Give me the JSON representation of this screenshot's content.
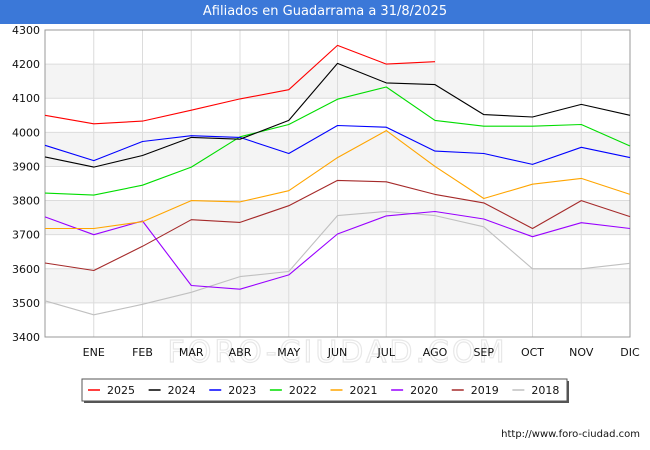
{
  "chart_data": {
    "type": "line",
    "title": "Afiliados en Guadarrama a 31/8/2025",
    "categories": [
      "",
      "ENE",
      "FEB",
      "MAR",
      "ABR",
      "MAY",
      "JUN",
      "JUL",
      "AGO",
      "SEP",
      "OCT",
      "NOV",
      "DIC"
    ],
    "ylim": [
      3400,
      4300
    ],
    "yticks": [
      3400,
      3500,
      3600,
      3700,
      3800,
      3900,
      4000,
      4100,
      4200,
      4300
    ],
    "watermark": "FORO-CIUDAD.COM",
    "source": "http://www.foro-ciudad.com",
    "series": [
      {
        "name": "2025",
        "color": "#ff0000",
        "values": [
          4050,
          4025,
          4033,
          4065,
          4098,
          4125,
          4255,
          4200,
          4207,
          null,
          null,
          null,
          null
        ]
      },
      {
        "name": "2024",
        "color": "#000000",
        "values": [
          3928,
          3898,
          3932,
          3985,
          3980,
          4035,
          4202,
          4145,
          4140,
          4052,
          4045,
          4082,
          4050
        ]
      },
      {
        "name": "2023",
        "color": "#0000ff",
        "values": [
          3962,
          3917,
          3973,
          3990,
          3985,
          3938,
          4020,
          4015,
          3945,
          3938,
          3906,
          3956,
          3926
        ]
      },
      {
        "name": "2022",
        "color": "#00dd00",
        "values": [
          3822,
          3816,
          3845,
          3898,
          3987,
          4023,
          4097,
          4133,
          4035,
          4018,
          4018,
          4023,
          3960
        ]
      },
      {
        "name": "2021",
        "color": "#ffa500",
        "values": [
          3718,
          3718,
          3738,
          3800,
          3796,
          3829,
          3926,
          4005,
          3900,
          3806,
          3848,
          3865,
          3818
        ]
      },
      {
        "name": "2020",
        "color": "#9900ff",
        "values": [
          3752,
          3700,
          3740,
          3551,
          3540,
          3582,
          3702,
          3755,
          3768,
          3746,
          3694,
          3735,
          3718
        ]
      },
      {
        "name": "2019",
        "color": "#a52a2a",
        "values": [
          3617,
          3595,
          3666,
          3744,
          3736,
          3785,
          3859,
          3855,
          3818,
          3793,
          3718,
          3800,
          3753
        ]
      },
      {
        "name": "2018",
        "color": "#c0c0c0",
        "values": [
          3506,
          3465,
          3496,
          3531,
          3577,
          3592,
          3756,
          3768,
          3756,
          3723,
          3600,
          3600,
          3616
        ]
      }
    ]
  }
}
